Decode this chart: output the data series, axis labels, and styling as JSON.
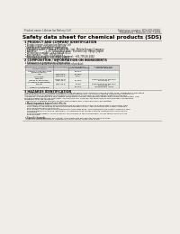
{
  "bg_color": "#f0ede8",
  "header_left": "Product name: Lithium Ion Battery Cell",
  "header_right_line1": "Substance number: SDS-008-00010",
  "header_right_line2": "Established / Revision: Dec.7.2016",
  "title": "Safety data sheet for chemical products (SDS)",
  "section1_title": "1 PRODUCT AND COMPANY IDENTIFICATION",
  "section1_lines": [
    " • Product name: Lithium Ion Battery Cell",
    " • Product code: Cylindrical-type cell",
    "   SNF18650U, SNF18650L, SNF18650A",
    " • Company name:     Sanyo Electric Co., Ltd., Mobile Energy Company",
    " • Address:             2-22-1  Kamimunakan,  Sumoto-City, Hyogo, Japan",
    " • Telephone number:   +81-799-26-4111",
    " • Fax number:   +81-799-26-4123",
    " • Emergency telephone number (daytime): +81-799-26-2062",
    "   (Night and holiday): +81-799-26-4101"
  ],
  "section2_title": "2 COMPOSITION / INFORMATION ON INGREDIENTS",
  "section2_sub": " • Substance or preparation: Preparation",
  "section2_sub2": " • Information about the chemical nature of product:",
  "table_headers": [
    "Chemical name",
    "CAS number",
    "Concentration /\nConcentration range",
    "Classification and\nhazard labeling"
  ],
  "table_subheader": "Several names",
  "table_rows": [
    [
      "Lithium oxide tantalate\n(LiMn₂(CoNiO₂))",
      "-",
      "30-60%",
      ""
    ],
    [
      "Iron",
      "7439-89-6",
      "10-25%",
      ""
    ],
    [
      "Aluminum",
      "7429-90-5",
      "2-6%",
      ""
    ],
    [
      "Graphite\n(Wada or graphite1)\n(Al-Wada or graphite1)",
      "77782-42-5\n7782-44-0",
      "10-25%",
      "Sensitization of the skin\ngroup No.2"
    ],
    [
      "Copper",
      "7440-50-8",
      "5-15%",
      "Sensitization of the skin\ngroup No.2"
    ],
    [
      "Organic electrolyte",
      "-",
      "10-20%",
      "Inflammable liquid"
    ]
  ],
  "section3_title": "3 HAZARDS IDENTIFICATION",
  "section3_paras": [
    "  For the battery cell, chemical materials are stored in a hermetically sealed metal case, designed to withstand",
    "temperatures and pressures-conditions during normal use. As a result, during normal use, there is no",
    "physical danger of ignition or explosion and there is no danger of hazardous materials leakage.",
    "  However, if exposed to a fire, added mechanical shocks, decompose, when electrolyte accumulates, use.",
    "the gas inside cannot be operated. The battery cell case will be breached of the extreme. Hazardous",
    "materials may be released.",
    "  Moreover, if heated strongly by the surrounding fire, some gas may be emitted."
  ],
  "section3_bullet1": " • Most important hazard and effects:",
  "section3_sub1": "  Human health effects:",
  "section3_sub1_lines": [
    "    Inhalation: The release of the electrolyte has an anesthesia action and stimulates a respiratory tract.",
    "    Skin contact: The release of the electrolyte stimulates a skin. The electrolyte skin contact causes a",
    "    sore and stimulation on the skin.",
    "    Eye contact: The release of the electrolyte stimulates eyes. The electrolyte eye contact causes a sore",
    "    and stimulation on the eye. Especially, a substance that causes a strong inflammation of the eye is",
    "    contained.",
    "    Environmental effects: Since a battery cell remains in the environment, do not throw out it into the",
    "    environment."
  ],
  "section3_bullet2": " • Specific hazards:",
  "section3_sub2_lines": [
    "  If the electrolyte contacts with water, it will generate detrimental hydrogen fluoride.",
    "  Since the used electrolyte is inflammable liquid, do not bring close to fire."
  ]
}
